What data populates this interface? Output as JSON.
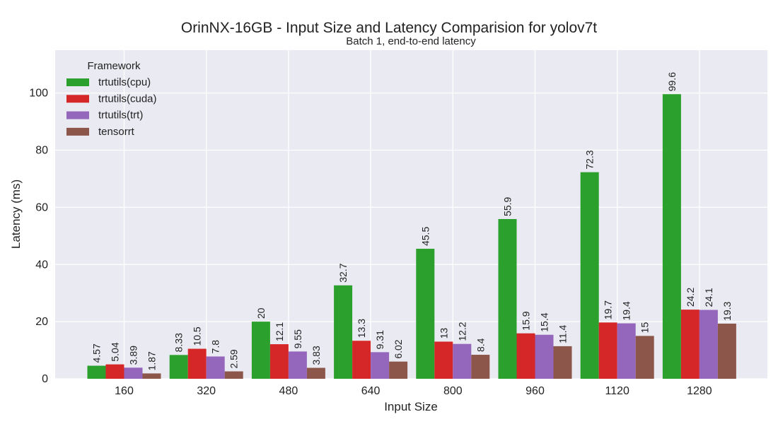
{
  "chart_data": {
    "type": "bar",
    "title": "OrinNX-16GB - Input Size and Latency Comparision for yolov7t",
    "subtitle": "Batch 1, end-to-end latency",
    "xlabel": "Input Size",
    "ylabel": "Latency (ms)",
    "ylim": [
      0,
      115
    ],
    "yticks": [
      0,
      20,
      40,
      60,
      80,
      100
    ],
    "grid": true,
    "legend": {
      "title": "Framework",
      "placement": "top-left"
    },
    "categories": [
      "160",
      "320",
      "480",
      "640",
      "800",
      "960",
      "1120",
      "1280"
    ],
    "series": [
      {
        "name": "trtutils(cpu)",
        "color": "#2ca02c",
        "values": [
          4.57,
          8.33,
          20,
          32.7,
          45.5,
          55.9,
          72.3,
          99.6
        ],
        "labels": [
          "4.57",
          "8.33",
          "20",
          "32.7",
          "45.5",
          "55.9",
          "72.3",
          "99.6"
        ]
      },
      {
        "name": "trtutils(cuda)",
        "color": "#d62728",
        "values": [
          5.04,
          10.5,
          12.1,
          13.3,
          13,
          15.9,
          19.7,
          24.2
        ],
        "labels": [
          "5.04",
          "10.5",
          "12.1",
          "13.3",
          "13",
          "15.9",
          "19.7",
          "24.2"
        ]
      },
      {
        "name": "trtutils(trt)",
        "color": "#9467bd",
        "values": [
          3.89,
          7.8,
          9.55,
          9.31,
          12.2,
          15.4,
          19.4,
          24.1
        ],
        "labels": [
          "3.89",
          "7.8",
          "9.55",
          "9.31",
          "12.2",
          "15.4",
          "19.4",
          "24.1"
        ]
      },
      {
        "name": "tensorrt",
        "color": "#8c564b",
        "values": [
          1.87,
          2.59,
          3.83,
          6.02,
          8.4,
          11.4,
          15,
          19.3
        ],
        "labels": [
          "1.87",
          "2.59",
          "3.83",
          "6.02",
          "8.4",
          "11.4",
          "15",
          "19.3"
        ]
      }
    ]
  }
}
